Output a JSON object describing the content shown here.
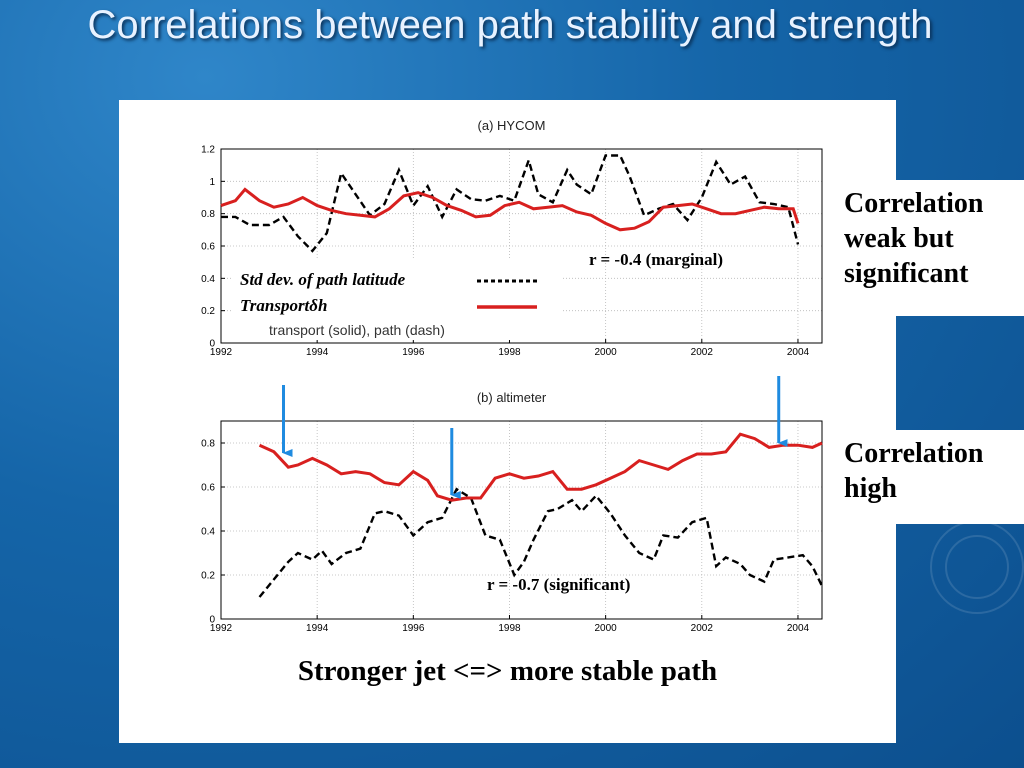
{
  "slide": {
    "title": "Correlations between path stability and strength",
    "conclusion": "Stronger jet <=> more stable path",
    "callouts": {
      "weak": [
        "Correlation",
        "weak but",
        "significant"
      ],
      "high": [
        "Correlation",
        "high"
      ]
    }
  },
  "colors": {
    "transport": "#d8201f",
    "path": "#000000",
    "arrow": "#1f8be0",
    "grid": "#b8b8b8"
  },
  "chart_data": [
    {
      "type": "line",
      "title": "(a) HYCOM",
      "xlim": [
        1992,
        2004.5
      ],
      "ylim": [
        0,
        1.2
      ],
      "xticks": [
        1992,
        1994,
        1996,
        1998,
        2000,
        2002,
        2004
      ],
      "yticks": [
        0,
        0.2,
        0.4,
        0.6,
        0.8,
        1,
        1.2
      ],
      "grid": true,
      "annotation": "r = -0.4 (marginal)",
      "legend": {
        "entries": [
          "Std dev. of path latitude",
          "Transportδh"
        ],
        "subtitle": "transport (solid), path (dash)",
        "placement": "lower-left"
      },
      "series": [
        {
          "name": "Std dev. of path latitude",
          "style": "dashed",
          "x": [
            1992,
            1992.3,
            1992.6,
            1993,
            1993.3,
            1993.6,
            1993.9,
            1994.2,
            1994.5,
            1994.8,
            1995.1,
            1995.4,
            1995.7,
            1996,
            1996.3,
            1996.6,
            1996.9,
            1997.2,
            1997.5,
            1997.8,
            1998.1,
            1998.4,
            1998.6,
            1998.9,
            1999.2,
            1999.4,
            1999.7,
            2000,
            2000.3,
            2000.5,
            2000.8,
            2001.1,
            2001.4,
            2001.7,
            2002,
            2002.3,
            2002.6,
            2002.9,
            2003.2,
            2003.5,
            2003.8,
            2004
          ],
          "y": [
            0.78,
            0.78,
            0.73,
            0.73,
            0.78,
            0.66,
            0.57,
            0.68,
            1.05,
            0.92,
            0.79,
            0.86,
            1.07,
            0.85,
            0.97,
            0.78,
            0.95,
            0.89,
            0.88,
            0.91,
            0.88,
            1.13,
            0.92,
            0.87,
            1.07,
            0.98,
            0.92,
            1.16,
            1.16,
            1.03,
            0.79,
            0.83,
            0.86,
            0.76,
            0.9,
            1.12,
            0.98,
            1.03,
            0.87,
            0.86,
            0.84,
            0.61
          ]
        },
        {
          "name": "Transportδh",
          "style": "solid",
          "x": [
            1992,
            1992.3,
            1992.5,
            1992.8,
            1993.1,
            1993.4,
            1993.7,
            1994,
            1994.3,
            1994.6,
            1994.9,
            1995.2,
            1995.5,
            1995.8,
            1996.1,
            1996.4,
            1996.7,
            1997,
            1997.3,
            1997.6,
            1997.9,
            1998.2,
            1998.5,
            1998.8,
            1999.1,
            1999.4,
            1999.7,
            2000,
            2000.3,
            2000.6,
            2000.9,
            2001.2,
            2001.5,
            2001.8,
            2002.1,
            2002.4,
            2002.7,
            2003,
            2003.3,
            2003.6,
            2003.9,
            2004
          ],
          "y": [
            0.85,
            0.88,
            0.95,
            0.88,
            0.84,
            0.86,
            0.9,
            0.85,
            0.82,
            0.8,
            0.79,
            0.78,
            0.83,
            0.91,
            0.93,
            0.9,
            0.85,
            0.82,
            0.78,
            0.79,
            0.85,
            0.87,
            0.83,
            0.84,
            0.85,
            0.81,
            0.79,
            0.74,
            0.7,
            0.71,
            0.75,
            0.84,
            0.85,
            0.86,
            0.83,
            0.8,
            0.8,
            0.82,
            0.84,
            0.83,
            0.83,
            0.74
          ]
        }
      ]
    },
    {
      "type": "line",
      "title": "(b) altimeter",
      "xlim": [
        1992,
        2004.5
      ],
      "ylim": [
        0,
        0.9
      ],
      "xticks": [
        1992,
        1994,
        1996,
        1998,
        2000,
        2002,
        2004
      ],
      "yticks": [
        0,
        0.2,
        0.4,
        0.6,
        0.8
      ],
      "grid": true,
      "annotation": "r = -0.7 (significant)",
      "arrows_x": [
        1993.3,
        1996.8,
        2003.6
      ],
      "series": [
        {
          "name": "path",
          "style": "dashed",
          "x": [
            1992.8,
            1993.1,
            1993.4,
            1993.6,
            1993.9,
            1994.1,
            1994.3,
            1994.6,
            1994.9,
            1995.2,
            1995.4,
            1995.7,
            1996,
            1996.3,
            1996.6,
            1996.9,
            1997.2,
            1997.5,
            1997.8,
            1998.1,
            1998.3,
            1998.5,
            1998.8,
            1999,
            1999.3,
            1999.5,
            1999.8,
            2000.1,
            2000.4,
            2000.7,
            2001,
            2001.2,
            2001.5,
            2001.8,
            2002.1,
            2002.3,
            2002.5,
            2002.8,
            2003,
            2003.3,
            2003.5,
            2003.8,
            2004.1,
            2004.3,
            2004.5
          ],
          "y": [
            0.1,
            0.18,
            0.26,
            0.3,
            0.27,
            0.31,
            0.25,
            0.3,
            0.32,
            0.48,
            0.49,
            0.47,
            0.38,
            0.44,
            0.46,
            0.59,
            0.55,
            0.38,
            0.36,
            0.2,
            0.26,
            0.36,
            0.49,
            0.5,
            0.54,
            0.49,
            0.56,
            0.48,
            0.38,
            0.3,
            0.27,
            0.38,
            0.37,
            0.44,
            0.46,
            0.24,
            0.28,
            0.25,
            0.2,
            0.17,
            0.27,
            0.28,
            0.29,
            0.24,
            0.15
          ]
        },
        {
          "name": "transport",
          "style": "solid",
          "x": [
            1992.8,
            1993.1,
            1993.4,
            1993.6,
            1993.9,
            1994.2,
            1994.5,
            1994.8,
            1995.1,
            1995.4,
            1995.7,
            1996,
            1996.3,
            1996.5,
            1996.8,
            1997.1,
            1997.4,
            1997.7,
            1998,
            1998.3,
            1998.6,
            1998.9,
            1999.2,
            1999.5,
            1999.8,
            2000.1,
            2000.4,
            2000.7,
            2001,
            2001.3,
            2001.6,
            2001.9,
            2002.2,
            2002.5,
            2002.8,
            2003.1,
            2003.4,
            2003.7,
            2004,
            2004.3,
            2004.5
          ],
          "y": [
            0.79,
            0.76,
            0.69,
            0.7,
            0.73,
            0.7,
            0.66,
            0.67,
            0.66,
            0.62,
            0.61,
            0.67,
            0.63,
            0.56,
            0.54,
            0.55,
            0.55,
            0.64,
            0.66,
            0.64,
            0.65,
            0.67,
            0.59,
            0.59,
            0.61,
            0.64,
            0.67,
            0.72,
            0.7,
            0.68,
            0.72,
            0.75,
            0.75,
            0.76,
            0.84,
            0.82,
            0.78,
            0.79,
            0.79,
            0.78,
            0.8
          ]
        }
      ]
    }
  ]
}
